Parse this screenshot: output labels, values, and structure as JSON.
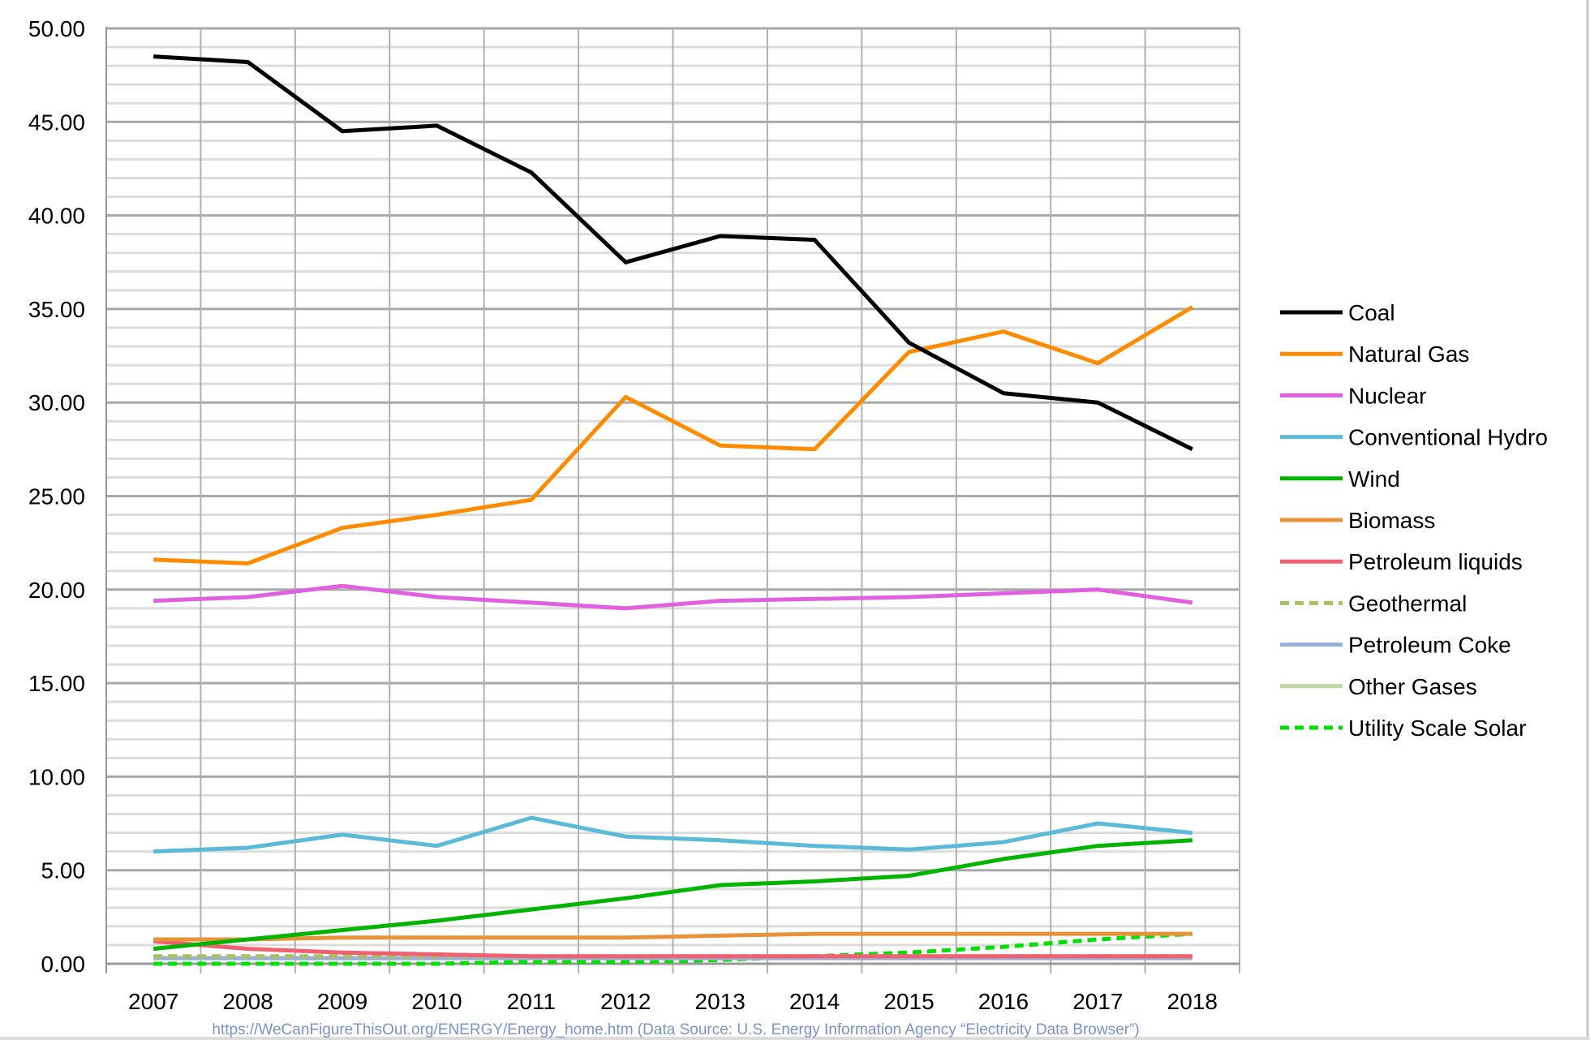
{
  "chart_data": {
    "type": "line",
    "title": "",
    "xlabel": "",
    "ylabel": "",
    "ylim": [
      0,
      50
    ],
    "y_major_step": 5,
    "y_minor_step": 1,
    "grid": true,
    "legend_position": "right",
    "y_tick_labels": [
      "0.00",
      "5.00",
      "10.00",
      "15.00",
      "20.00",
      "25.00",
      "30.00",
      "35.00",
      "40.00",
      "45.00",
      "50.00"
    ],
    "categories": [
      "2007",
      "2008",
      "2009",
      "2010",
      "2011",
      "2012",
      "2013",
      "2014",
      "2015",
      "2016",
      "2017",
      "2018"
    ],
    "series": [
      {
        "name": "Coal",
        "color": "#000000",
        "dashed": false,
        "values": [
          48.5,
          48.2,
          44.5,
          44.8,
          42.3,
          37.5,
          38.9,
          38.7,
          33.2,
          30.5,
          30.0,
          27.5
        ]
      },
      {
        "name": "Natural Gas",
        "color": "#ff8c00",
        "dashed": false,
        "values": [
          21.6,
          21.4,
          23.3,
          24.0,
          24.8,
          30.3,
          27.7,
          27.5,
          32.7,
          33.8,
          32.1,
          35.1
        ]
      },
      {
        "name": "Nuclear",
        "color": "#e060e0",
        "dashed": false,
        "values": [
          19.4,
          19.6,
          20.2,
          19.6,
          19.3,
          19.0,
          19.4,
          19.5,
          19.6,
          19.8,
          20.0,
          19.3
        ]
      },
      {
        "name": "Conventional Hydro",
        "color": "#5bbad8",
        "dashed": false,
        "values": [
          6.0,
          6.2,
          6.9,
          6.3,
          7.8,
          6.8,
          6.6,
          6.3,
          6.1,
          6.5,
          7.5,
          7.0
        ]
      },
      {
        "name": "Wind",
        "color": "#00b400",
        "dashed": false,
        "values": [
          0.8,
          1.3,
          1.8,
          2.3,
          2.9,
          3.5,
          4.2,
          4.4,
          4.7,
          5.6,
          6.3,
          6.6
        ]
      },
      {
        "name": "Biomass",
        "color": "#e8923a",
        "dashed": false,
        "values": [
          1.3,
          1.3,
          1.4,
          1.4,
          1.4,
          1.4,
          1.5,
          1.6,
          1.6,
          1.6,
          1.6,
          1.6
        ]
      },
      {
        "name": "Petroleum liquids",
        "color": "#f06070",
        "dashed": false,
        "values": [
          1.2,
          0.8,
          0.6,
          0.5,
          0.4,
          0.4,
          0.4,
          0.4,
          0.4,
          0.4,
          0.4,
          0.4
        ]
      },
      {
        "name": "Geothermal",
        "color": "#a8c060",
        "dashed": true,
        "values": [
          0.4,
          0.4,
          0.4,
          0.4,
          0.4,
          0.4,
          0.4,
          0.4,
          0.4,
          0.4,
          0.4,
          0.4
        ]
      },
      {
        "name": "Petroleum Coke",
        "color": "#9aaedc",
        "dashed": false,
        "values": [
          0.3,
          0.3,
          0.3,
          0.3,
          0.3,
          0.3,
          0.3,
          0.3,
          0.3,
          0.3,
          0.3,
          0.3
        ]
      },
      {
        "name": "Other Gases",
        "color": "#c0d8a0",
        "dashed": false,
        "values": [
          0.3,
          0.3,
          0.3,
          0.3,
          0.3,
          0.3,
          0.3,
          0.3,
          0.3,
          0.3,
          0.3,
          0.3
        ]
      },
      {
        "name": "Utility Scale Solar",
        "color": "#00e000",
        "dashed": true,
        "values": [
          0.0,
          0.0,
          0.0,
          0.0,
          0.1,
          0.1,
          0.2,
          0.4,
          0.6,
          0.9,
          1.3,
          1.6
        ]
      }
    ],
    "source_note": "https://WeCanFigureThisOut.org/ENERGY/Energy_home.htm  (Data Source: U.S. Energy Information Agency “Electricity Data Browser”)"
  }
}
